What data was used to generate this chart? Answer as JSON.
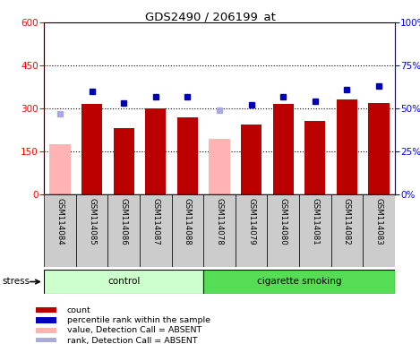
{
  "title": "GDS2490 / 206199_at",
  "samples": [
    "GSM114084",
    "GSM114085",
    "GSM114086",
    "GSM114087",
    "GSM114088",
    "GSM114078",
    "GSM114079",
    "GSM114080",
    "GSM114081",
    "GSM114082",
    "GSM114083"
  ],
  "count_values": [
    0,
    315,
    230,
    300,
    270,
    0,
    245,
    315,
    255,
    330,
    320
  ],
  "absent_value_values": [
    175,
    0,
    0,
    0,
    0,
    195,
    0,
    0,
    0,
    0,
    0
  ],
  "percentile_ranks_pct": [
    0,
    60,
    53,
    57,
    57,
    0,
    52,
    57,
    54,
    61,
    63
  ],
  "absent_rank_pct": [
    47,
    0,
    0,
    0,
    0,
    49,
    0,
    0,
    0,
    0,
    0
  ],
  "is_absent_value": [
    true,
    false,
    false,
    false,
    false,
    true,
    false,
    false,
    false,
    false,
    false
  ],
  "is_absent_rank": [
    true,
    false,
    false,
    false,
    false,
    false,
    false,
    false,
    false,
    false,
    false
  ],
  "has_absent_rank2": [
    false,
    false,
    false,
    false,
    false,
    true,
    false,
    false,
    false,
    false,
    false
  ],
  "control_indices": [
    0,
    1,
    2,
    3,
    4
  ],
  "smoking_indices": [
    5,
    6,
    7,
    8,
    9,
    10
  ],
  "ylim_left": [
    0,
    600
  ],
  "ylim_right": [
    0,
    100
  ],
  "yticks_left": [
    0,
    150,
    300,
    450,
    600
  ],
  "yticks_right": [
    0,
    25,
    50,
    75,
    100
  ],
  "bar_color_red": "#bb0000",
  "bar_color_pink": "#ffb3b3",
  "dot_color_blue": "#0000bb",
  "dot_color_lightblue": "#aaaadd",
  "control_bg_light": "#ccffcc",
  "smoking_bg": "#55dd55",
  "sample_bg": "#cccccc",
  "legend_square_red": "#bb0000",
  "legend_square_blue": "#0000bb",
  "legend_square_pink": "#ffb3b3",
  "legend_square_lblue": "#aaaadd"
}
